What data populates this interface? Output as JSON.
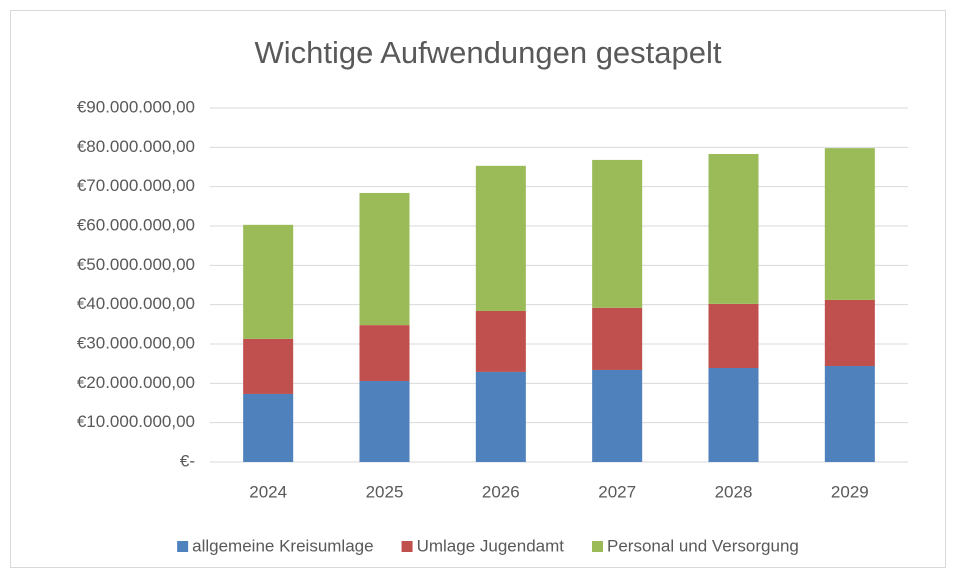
{
  "chart_data": {
    "type": "bar",
    "stacked": true,
    "title": "Wichtige Aufwendungen gestapelt",
    "categories": [
      "2024",
      "2025",
      "2026",
      "2027",
      "2028",
      "2029"
    ],
    "series": [
      {
        "name": "allgemeine Kreisumlage",
        "color": "#4f81bd",
        "values": [
          17300000,
          20600000,
          22900000,
          23400000,
          23900000,
          24400000
        ]
      },
      {
        "name": "Umlage Jugendamt",
        "color": "#c0504d",
        "values": [
          14000000,
          14200000,
          15500000,
          15800000,
          16300000,
          16800000
        ]
      },
      {
        "name": "Personal und Versorgung",
        "color": "#9bbb59",
        "values": [
          29000000,
          33600000,
          36900000,
          37600000,
          38100000,
          38600000
        ]
      }
    ],
    "ylim": [
      0,
      90000000
    ],
    "yticks": [
      {
        "value": 0,
        "label": "€-"
      },
      {
        "value": 10000000,
        "label": "€10.000.000,00"
      },
      {
        "value": 20000000,
        "label": "€20.000.000,00"
      },
      {
        "value": 30000000,
        "label": "€30.000.000,00"
      },
      {
        "value": 40000000,
        "label": "€40.000.000,00"
      },
      {
        "value": 50000000,
        "label": "€50.000.000,00"
      },
      {
        "value": 60000000,
        "label": "€60.000.000,00"
      },
      {
        "value": 70000000,
        "label": "€70.000.000,00"
      },
      {
        "value": 80000000,
        "label": "€80.000.000,00"
      },
      {
        "value": 90000000,
        "label": "€90.000.000,00"
      }
    ],
    "grid": true,
    "legend": "bottom"
  }
}
